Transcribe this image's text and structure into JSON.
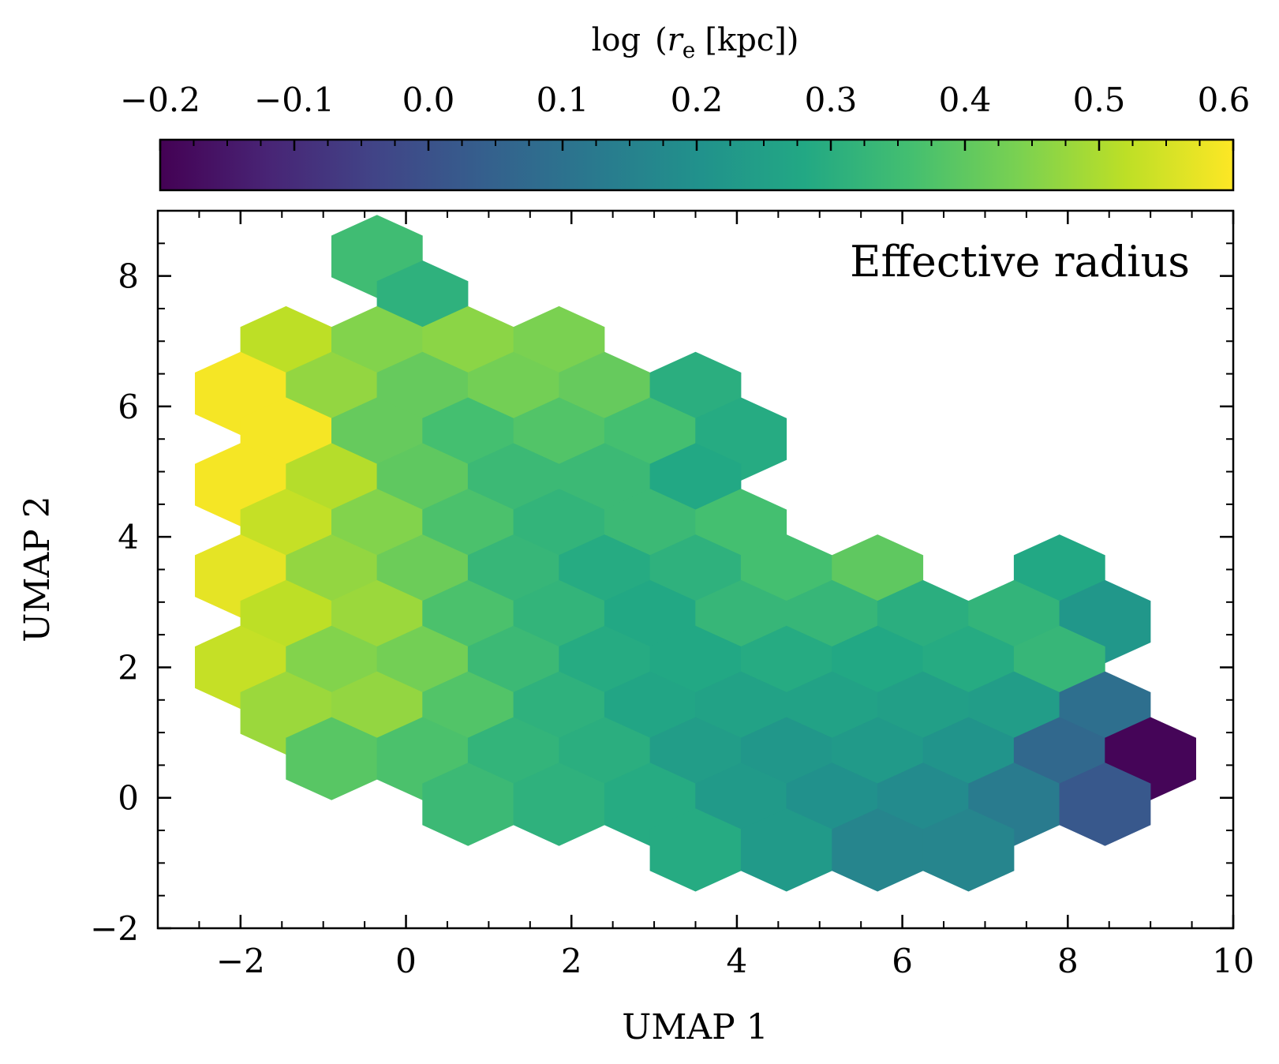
{
  "chart_data": {
    "type": "heatmap",
    "subtype": "hexbin",
    "annotation": "Effective radius",
    "xlabel": "UMAP 1",
    "ylabel": "UMAP 2",
    "xlim": [
      -3.0,
      10.0
    ],
    "ylim": [
      -2.0,
      9.0
    ],
    "xticks": [
      -2,
      0,
      2,
      4,
      6,
      8,
      10
    ],
    "yticks": [
      -2,
      0,
      2,
      4,
      6,
      8
    ],
    "xtick_labels": [
      "−2",
      "0",
      "2",
      "4",
      "6",
      "8",
      "10"
    ],
    "ytick_labels": [
      "−2",
      "0",
      "2",
      "4",
      "6",
      "8"
    ],
    "colorbar": {
      "label_prefix": "log",
      "label_var": "r",
      "label_sub": "e",
      "label_unit": "[kpc])",
      "label_open": "(",
      "colormap": "viridis",
      "range": [
        -0.2,
        0.6
      ],
      "position": "top",
      "ticks": [
        -0.2,
        -0.1,
        0.0,
        0.1,
        0.2,
        0.3,
        0.4,
        0.5,
        0.6
      ],
      "tick_labels": [
        "−0.2",
        "−0.1",
        "0.0",
        "0.1",
        "0.2",
        "0.3",
        "0.4",
        "0.5",
        "0.6"
      ]
    },
    "hex_size": 0.63,
    "hexes": [
      {
        "x": -0.35,
        "y": 8.3,
        "value": 0.35
      },
      {
        "x": 0.2,
        "y": 7.6,
        "value": 0.31
      },
      {
        "x": -1.45,
        "y": 6.9,
        "value": 0.52
      },
      {
        "x": -0.35,
        "y": 6.9,
        "value": 0.45
      },
      {
        "x": 0.75,
        "y": 6.9,
        "value": 0.46
      },
      {
        "x": 1.85,
        "y": 6.9,
        "value": 0.44
      },
      {
        "x": -2.0,
        "y": 6.2,
        "value": 0.59
      },
      {
        "x": -0.9,
        "y": 6.2,
        "value": 0.47
      },
      {
        "x": 0.2,
        "y": 6.2,
        "value": 0.41
      },
      {
        "x": 1.3,
        "y": 6.2,
        "value": 0.43
      },
      {
        "x": 2.4,
        "y": 6.2,
        "value": 0.41
      },
      {
        "x": 3.5,
        "y": 6.2,
        "value": 0.3
      },
      {
        "x": -1.45,
        "y": 5.5,
        "value": 0.59
      },
      {
        "x": -0.35,
        "y": 5.5,
        "value": 0.41
      },
      {
        "x": 0.75,
        "y": 5.5,
        "value": 0.36
      },
      {
        "x": 1.85,
        "y": 5.5,
        "value": 0.38
      },
      {
        "x": 2.95,
        "y": 5.5,
        "value": 0.36
      },
      {
        "x": 4.05,
        "y": 5.5,
        "value": 0.29
      },
      {
        "x": -2.0,
        "y": 4.8,
        "value": 0.59
      },
      {
        "x": -0.9,
        "y": 4.8,
        "value": 0.51
      },
      {
        "x": 0.2,
        "y": 4.8,
        "value": 0.4
      },
      {
        "x": 1.3,
        "y": 4.8,
        "value": 0.34
      },
      {
        "x": 2.4,
        "y": 4.8,
        "value": 0.34
      },
      {
        "x": 3.5,
        "y": 4.8,
        "value": 0.28
      },
      {
        "x": -1.45,
        "y": 4.1,
        "value": 0.53
      },
      {
        "x": -0.35,
        "y": 4.1,
        "value": 0.45
      },
      {
        "x": 0.75,
        "y": 4.1,
        "value": 0.37
      },
      {
        "x": 1.85,
        "y": 4.1,
        "value": 0.32
      },
      {
        "x": 2.95,
        "y": 4.1,
        "value": 0.34
      },
      {
        "x": 4.05,
        "y": 4.1,
        "value": 0.36
      },
      {
        "x": -2.0,
        "y": 3.4,
        "value": 0.57
      },
      {
        "x": -0.9,
        "y": 3.4,
        "value": 0.47
      },
      {
        "x": 0.2,
        "y": 3.4,
        "value": 0.42
      },
      {
        "x": 1.3,
        "y": 3.4,
        "value": 0.33
      },
      {
        "x": 2.4,
        "y": 3.4,
        "value": 0.29
      },
      {
        "x": 3.5,
        "y": 3.4,
        "value": 0.31
      },
      {
        "x": 4.6,
        "y": 3.4,
        "value": 0.36
      },
      {
        "x": 5.7,
        "y": 3.4,
        "value": 0.4
      },
      {
        "x": 7.9,
        "y": 3.4,
        "value": 0.28
      },
      {
        "x": -1.45,
        "y": 2.7,
        "value": 0.52
      },
      {
        "x": -0.35,
        "y": 2.7,
        "value": 0.48
      },
      {
        "x": 0.75,
        "y": 2.7,
        "value": 0.37
      },
      {
        "x": 1.85,
        "y": 2.7,
        "value": 0.32
      },
      {
        "x": 2.95,
        "y": 2.7,
        "value": 0.28
      },
      {
        "x": 4.05,
        "y": 2.7,
        "value": 0.33
      },
      {
        "x": 5.15,
        "y": 2.7,
        "value": 0.33
      },
      {
        "x": 6.25,
        "y": 2.7,
        "value": 0.3
      },
      {
        "x": 7.35,
        "y": 2.7,
        "value": 0.32
      },
      {
        "x": 8.45,
        "y": 2.7,
        "value": 0.22
      },
      {
        "x": -2.0,
        "y": 2.0,
        "value": 0.53
      },
      {
        "x": -0.9,
        "y": 2.0,
        "value": 0.45
      },
      {
        "x": 0.2,
        "y": 2.0,
        "value": 0.43
      },
      {
        "x": 1.3,
        "y": 2.0,
        "value": 0.34
      },
      {
        "x": 2.4,
        "y": 2.0,
        "value": 0.29
      },
      {
        "x": 3.5,
        "y": 2.0,
        "value": 0.28
      },
      {
        "x": 4.6,
        "y": 2.0,
        "value": 0.29
      },
      {
        "x": 5.7,
        "y": 2.0,
        "value": 0.28
      },
      {
        "x": 6.8,
        "y": 2.0,
        "value": 0.29
      },
      {
        "x": 7.9,
        "y": 2.0,
        "value": 0.33
      },
      {
        "x": -1.45,
        "y": 1.3,
        "value": 0.48
      },
      {
        "x": -0.35,
        "y": 1.3,
        "value": 0.47
      },
      {
        "x": 0.75,
        "y": 1.3,
        "value": 0.38
      },
      {
        "x": 1.85,
        "y": 1.3,
        "value": 0.31
      },
      {
        "x": 2.95,
        "y": 1.3,
        "value": 0.27
      },
      {
        "x": 4.05,
        "y": 1.3,
        "value": 0.26
      },
      {
        "x": 5.15,
        "y": 1.3,
        "value": 0.26
      },
      {
        "x": 6.25,
        "y": 1.3,
        "value": 0.25
      },
      {
        "x": 7.35,
        "y": 1.3,
        "value": 0.24
      },
      {
        "x": 8.45,
        "y": 1.3,
        "value": 0.09
      },
      {
        "x": -0.9,
        "y": 0.6,
        "value": 0.39
      },
      {
        "x": 0.2,
        "y": 0.6,
        "value": 0.37
      },
      {
        "x": 1.3,
        "y": 0.6,
        "value": 0.32
      },
      {
        "x": 2.4,
        "y": 0.6,
        "value": 0.3
      },
      {
        "x": 3.5,
        "y": 0.6,
        "value": 0.24
      },
      {
        "x": 4.6,
        "y": 0.6,
        "value": 0.22
      },
      {
        "x": 5.7,
        "y": 0.6,
        "value": 0.23
      },
      {
        "x": 6.8,
        "y": 0.6,
        "value": 0.21
      },
      {
        "x": 7.9,
        "y": 0.6,
        "value": 0.07
      },
      {
        "x": 9.0,
        "y": 0.6,
        "value": -0.19
      },
      {
        "x": 0.75,
        "y": -0.1,
        "value": 0.34
      },
      {
        "x": 1.85,
        "y": -0.1,
        "value": 0.31
      },
      {
        "x": 2.95,
        "y": -0.1,
        "value": 0.29
      },
      {
        "x": 4.05,
        "y": -0.1,
        "value": 0.23
      },
      {
        "x": 5.15,
        "y": -0.1,
        "value": 0.2
      },
      {
        "x": 6.25,
        "y": -0.1,
        "value": 0.18
      },
      {
        "x": 7.35,
        "y": -0.1,
        "value": 0.13
      },
      {
        "x": 8.45,
        "y": -0.1,
        "value": 0.02
      },
      {
        "x": 3.5,
        "y": -0.8,
        "value": 0.29
      },
      {
        "x": 4.6,
        "y": -0.8,
        "value": 0.23
      },
      {
        "x": 5.7,
        "y": -0.8,
        "value": 0.16
      },
      {
        "x": 6.8,
        "y": -0.8,
        "value": 0.16
      }
    ]
  }
}
